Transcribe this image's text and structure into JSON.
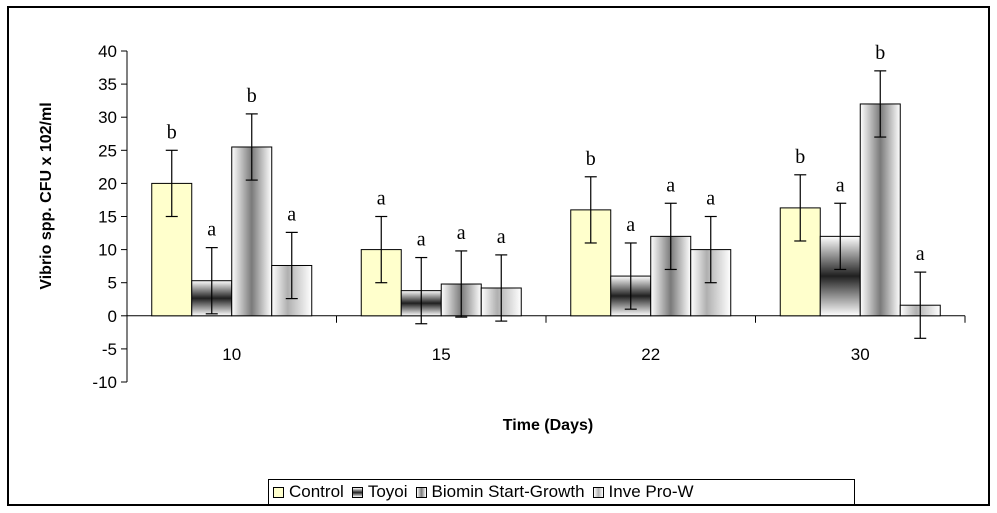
{
  "chart_data": {
    "type": "bar",
    "xlabel": "Time (Days)",
    "ylabel": "Vibrio spp. CFU x 102/ml",
    "categories": [
      "10",
      "15",
      "22",
      "30"
    ],
    "ylim": [
      -10,
      40
    ],
    "yticks": [
      -10,
      -5,
      0,
      5,
      10,
      15,
      20,
      25,
      30,
      35,
      40
    ],
    "legend_position": "bottom",
    "series": [
      {
        "name": "Control",
        "values": [
          20,
          10,
          16,
          16.3
        ],
        "errors": [
          5,
          5,
          5,
          5
        ],
        "labels": [
          "b",
          "a",
          "b",
          "b"
        ],
        "color": "#ffffcc"
      },
      {
        "name": "Toyoi",
        "values": [
          5.3,
          3.8,
          6,
          12
        ],
        "errors": [
          5,
          5,
          5,
          5
        ],
        "labels": [
          "a",
          "a",
          "a",
          "a"
        ],
        "color": "#404040"
      },
      {
        "name": "Biomin Start-Growth",
        "values": [
          25.5,
          4.8,
          12,
          32
        ],
        "errors": [
          5,
          5,
          5,
          5
        ],
        "labels": [
          "b",
          "a",
          "a",
          "b"
        ],
        "color": "#808080"
      },
      {
        "name": "Inve Pro-W",
        "values": [
          7.6,
          4.2,
          10,
          1.6
        ],
        "errors": [
          5,
          5,
          5,
          5
        ],
        "labels": [
          "a",
          "a",
          "a",
          "a"
        ],
        "color": "#d9d9d9"
      }
    ]
  }
}
